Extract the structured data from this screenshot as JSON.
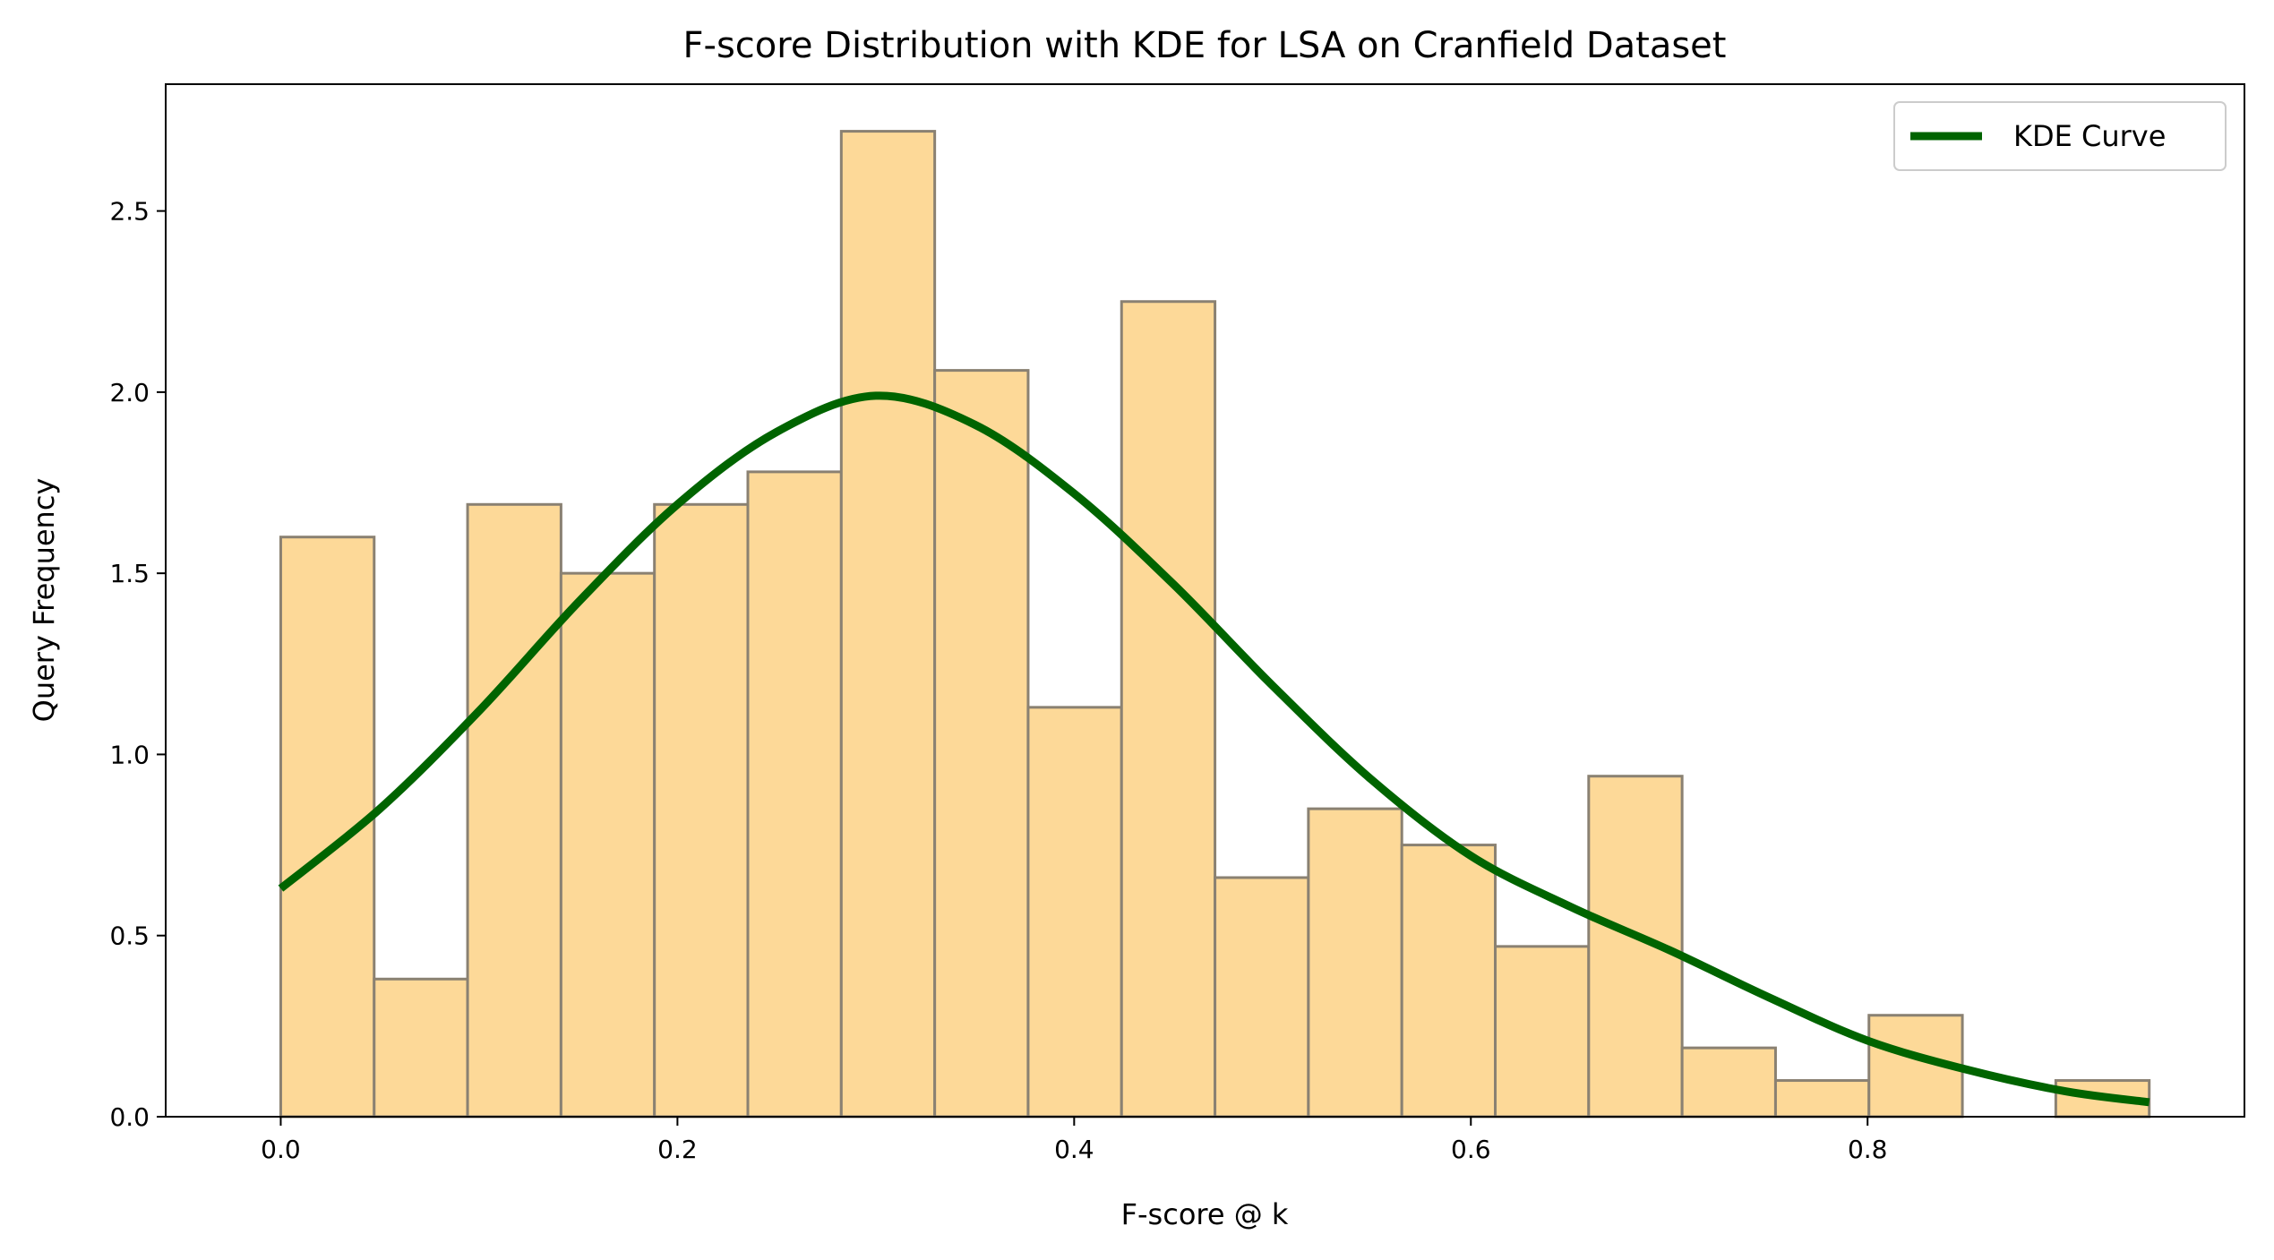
{
  "chart_data": {
    "type": "histogram",
    "title": "F-score Distribution with KDE for LSA on Cranfield Dataset",
    "xlabel": "F-score @ k",
    "ylabel": "Query Frequency",
    "xlim": [
      -0.058,
      0.99
    ],
    "ylim": [
      0,
      2.85
    ],
    "xticks": [
      0.0,
      0.2,
      0.4,
      0.6,
      0.8
    ],
    "xtick_labels": [
      "0.0",
      "0.2",
      "0.4",
      "0.6",
      "0.8"
    ],
    "yticks": [
      0.0,
      0.5,
      1.0,
      1.5,
      2.0,
      2.5
    ],
    "ytick_labels": [
      "0.0",
      "0.5",
      "1.0",
      "1.5",
      "2.0",
      "2.5"
    ],
    "bins": {
      "edges": [
        0.0,
        0.0471,
        0.0942,
        0.1413,
        0.1884,
        0.2355,
        0.2826,
        0.3297,
        0.3768,
        0.4239,
        0.471,
        0.5181,
        0.5652,
        0.6123,
        0.6594,
        0.7065,
        0.7536,
        0.8007,
        0.8478,
        0.8949,
        0.942
      ],
      "values": [
        1.6,
        0.38,
        1.69,
        1.5,
        1.69,
        1.78,
        2.72,
        2.06,
        1.13,
        2.25,
        0.66,
        0.85,
        0.75,
        0.47,
        0.94,
        0.19,
        0.1,
        0.28,
        0.0,
        0.1
      ],
      "fill_color": "#FDD998",
      "edge_color": "#8A8172"
    },
    "series": [
      {
        "name": "KDE Curve",
        "color": "#006400",
        "x": [
          0.0,
          0.05,
          0.1,
          0.15,
          0.2,
          0.25,
          0.3,
          0.35,
          0.4,
          0.45,
          0.5,
          0.55,
          0.6,
          0.65,
          0.7,
          0.75,
          0.8,
          0.85,
          0.9,
          0.942
        ],
        "y": [
          0.63,
          0.85,
          1.12,
          1.42,
          1.69,
          1.89,
          1.99,
          1.91,
          1.72,
          1.47,
          1.19,
          0.93,
          0.72,
          0.58,
          0.46,
          0.33,
          0.21,
          0.13,
          0.07,
          0.04
        ]
      }
    ],
    "legend": {
      "placement": "top-right",
      "entries": [
        "KDE Curve"
      ]
    },
    "grid": false
  }
}
